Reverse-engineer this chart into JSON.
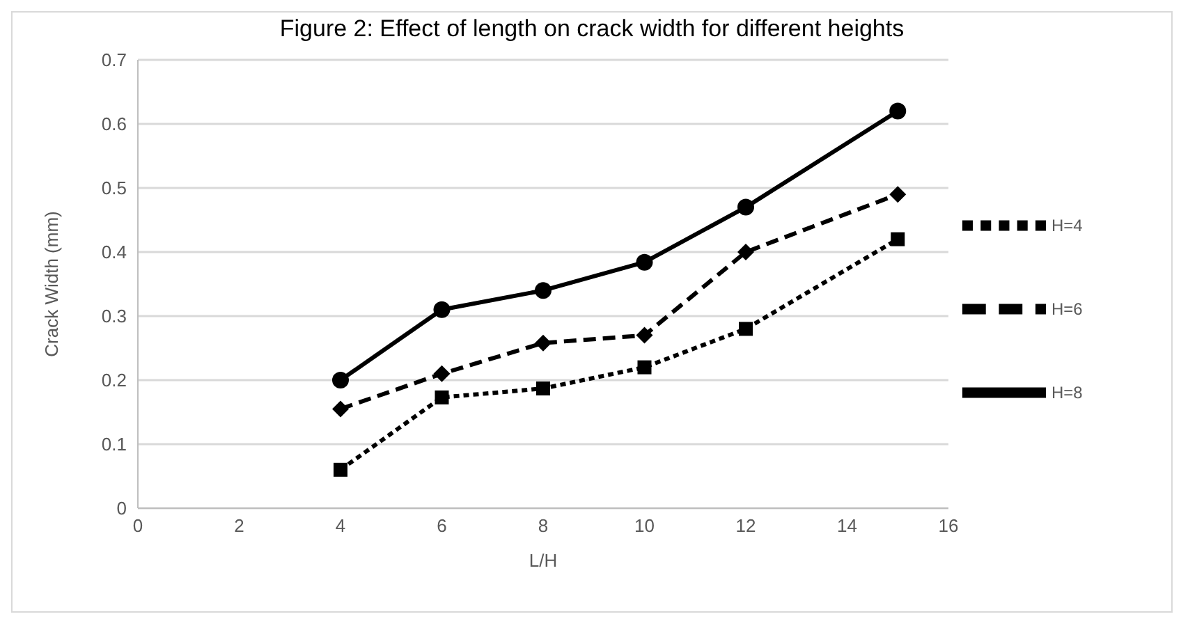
{
  "chart_data": {
    "type": "line",
    "title": "Figure 2: Effect of length on crack width for different heights",
    "xlabel": "L/H",
    "ylabel": "Crack Width (mm)",
    "x": [
      4,
      6,
      8,
      10,
      12,
      15
    ],
    "series": [
      {
        "name": "H=4",
        "color": "#000000",
        "line_style": "dotted",
        "marker": "square",
        "values": [
          0.06,
          0.173,
          0.187,
          0.22,
          0.28,
          0.42
        ]
      },
      {
        "name": "H=6",
        "color": "#000000",
        "line_style": "dashed",
        "marker": "diamond",
        "values": [
          0.155,
          0.21,
          0.258,
          0.27,
          0.4,
          0.49
        ]
      },
      {
        "name": "H=8",
        "color": "#000000",
        "line_style": "solid",
        "marker": "circle",
        "values": [
          0.2,
          0.31,
          0.34,
          0.384,
          0.47,
          0.62
        ]
      }
    ],
    "xlim": [
      0,
      16
    ],
    "xticks": [
      0,
      2,
      4,
      6,
      8,
      10,
      12,
      14,
      16
    ],
    "ylim": [
      0,
      0.7
    ],
    "yticks": [
      0,
      0.1,
      0.2,
      0.3,
      0.4,
      0.5,
      0.6,
      0.7
    ],
    "grid": "y",
    "legend": "right"
  }
}
